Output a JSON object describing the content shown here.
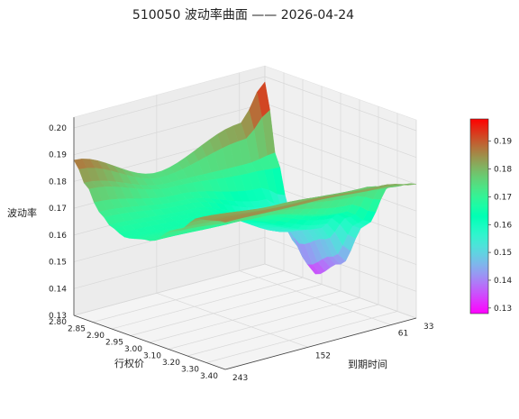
{
  "chart_data": {
    "type": "surface",
    "title": "510050 波动率曲面 —— 2026-04-24",
    "xlabel": "行权价",
    "ylabel": "到期时间",
    "zlabel": "波动率",
    "strike_ticks": [
      "2.80",
      "2.85",
      "2.90",
      "2.95",
      "3.00",
      "3.10",
      "3.20",
      "3.30",
      "3.40"
    ],
    "expiry_ticks": [
      "33",
      "61",
      "152",
      "243"
    ],
    "vol_ticks": [
      "0.13",
      "0.14",
      "0.15",
      "0.16",
      "0.17",
      "0.18",
      "0.19",
      "0.20"
    ],
    "zlim": [
      0.13,
      0.2
    ],
    "colorbar_ticks": [
      "0.13",
      "0.14",
      "0.15",
      "0.16",
      "0.17",
      "0.18",
      "0.19"
    ],
    "colorbar_range": [
      0.128,
      0.198
    ],
    "colormap": "rainbow",
    "strikes": [
      2.8,
      2.85,
      2.9,
      2.95,
      3.0,
      3.1,
      3.2,
      3.3,
      3.4
    ],
    "expiries": [
      33,
      61,
      152,
      243
    ],
    "vol_grid": [
      [
        0.198,
        0.17,
        0.152,
        0.14,
        0.133,
        0.14,
        0.158,
        0.176,
        0.18
      ],
      [
        0.185,
        0.17,
        0.16,
        0.155,
        0.152,
        0.156,
        0.165,
        0.178,
        0.182
      ],
      [
        0.175,
        0.172,
        0.168,
        0.166,
        0.165,
        0.167,
        0.172,
        0.18,
        0.184
      ],
      [
        0.188,
        0.18,
        0.172,
        0.168,
        0.166,
        0.168,
        0.175,
        0.183,
        0.185
      ]
    ]
  }
}
